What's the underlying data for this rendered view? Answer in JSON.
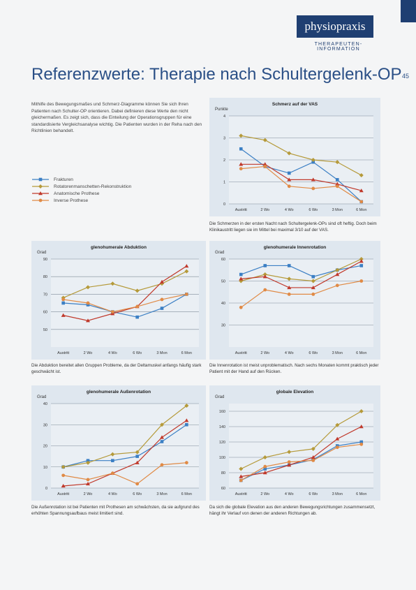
{
  "logo": "physiopraxis",
  "logo_subtitle": "THERAPEUTEN-INFORMATION",
  "title": "Referenzwerte: Therapie nach Schultergelenk-OP",
  "page_number": "45",
  "intro": "Mithilfe des Bewegungsmaßes und Schmerz-Diagramme können Sie sich Ihren Patienten nach Schulter-OP orientieren. Dabei definieren diese Werte den nicht gleichermaßen. Es zeigt sich, dass die Einteilung der Operationsgruppen für eine standardisierte Vergleichsanalyse wichtig. Die Patienten wurden in der Reha nach den Richtlinien behandelt.",
  "chart_data": [
    {
      "type": "line",
      "title": "Schmerz auf der VAS",
      "y_label": "Punkte",
      "categories": [
        "Austritt",
        "2 Wo",
        "4 Wo",
        "6 Wo",
        "3 Mon",
        "6 Mon"
      ],
      "ylim": [
        0,
        4
      ],
      "yticks": [
        0,
        1,
        2,
        3,
        4
      ],
      "grid": true,
      "series": [
        {
          "name": "Frakturen",
          "color": "#3b7fc4",
          "marker": "square",
          "values": [
            2.5,
            1.7,
            1.4,
            1.9,
            1.1,
            0.1
          ]
        },
        {
          "name": "Rotatorenmanschetten-Rekonstruktion",
          "color": "#b59a3a",
          "marker": "diamond",
          "values": [
            3.1,
            2.9,
            2.3,
            2.0,
            1.9,
            1.3
          ]
        },
        {
          "name": "Anatomische Prothese",
          "color": "#c0392b",
          "marker": "triangle",
          "values": [
            1.8,
            1.8,
            1.1,
            1.1,
            0.9,
            0.6
          ]
        },
        {
          "name": "Inverse Prothese",
          "color": "#e08a45",
          "marker": "circle",
          "values": [
            1.6,
            1.7,
            0.8,
            0.7,
            0.8,
            0.1
          ]
        }
      ],
      "caption": "Die Schmerzen in der ersten Nacht nach Schultergelenk-OPs sind oft heftig. Doch beim Klinikaustritt liegen sie im Mittel bei maximal 3/10 auf der VAS."
    },
    {
      "type": "line",
      "title": "glenohumerale Abduktion",
      "y_label": "Grad",
      "categories": [
        "Austritt",
        "2 Wo",
        "4 Wo",
        "6 Wo",
        "3 Mon",
        "6 Mon"
      ],
      "ylim": [
        40,
        90
      ],
      "yticks": [
        50,
        60,
        70,
        80,
        90
      ],
      "grid": true,
      "series": [
        {
          "color": "#3b7fc4",
          "marker": "square",
          "values": [
            65,
            64,
            60,
            57,
            62,
            70
          ]
        },
        {
          "color": "#b59a3a",
          "marker": "diamond",
          "values": [
            68,
            74,
            76,
            72,
            76,
            83
          ]
        },
        {
          "color": "#c0392b",
          "marker": "triangle",
          "values": [
            58,
            55,
            59,
            63,
            77,
            86
          ]
        },
        {
          "color": "#e08a45",
          "marker": "circle",
          "values": [
            67,
            65,
            60,
            63,
            67,
            70
          ]
        }
      ],
      "caption": "Die Abduktion bereitet allen Gruppen Probleme, da der Deltamuskel anfangs häufig stark geschwächt ist."
    },
    {
      "type": "line",
      "title": "glenohumerale Innenrotation",
      "y_label": "Grad",
      "categories": [
        "Austritt",
        "2 Wo",
        "4 Wo",
        "6 Wo",
        "3 Mon",
        "6 Mon"
      ],
      "ylim": [
        20,
        60
      ],
      "yticks": [
        30,
        40,
        50,
        60
      ],
      "grid": true,
      "series": [
        {
          "color": "#3b7fc4",
          "marker": "square",
          "values": [
            53,
            57,
            57,
            52,
            55,
            57
          ]
        },
        {
          "color": "#b59a3a",
          "marker": "diamond",
          "values": [
            50,
            53,
            51,
            50,
            55,
            60
          ]
        },
        {
          "color": "#c0392b",
          "marker": "triangle",
          "values": [
            51,
            52,
            47,
            47,
            53,
            59
          ]
        },
        {
          "color": "#e08a45",
          "marker": "circle",
          "values": [
            38,
            46,
            44,
            44,
            48,
            50
          ]
        }
      ],
      "caption": "Die Innenrotation ist meist unproblematisch. Nach sechs Monaten kommt praktisch jeder Patient mit der Hand auf den Rücken."
    },
    {
      "type": "line",
      "title": "glenohumerale Außenrotation",
      "y_label": "Grad",
      "categories": [
        "Austritt",
        "2 Wo",
        "4 Wo",
        "6 Wo",
        "3 Mon",
        "6 Mon"
      ],
      "ylim": [
        0,
        40
      ],
      "yticks": [
        0,
        10,
        20,
        30,
        40
      ],
      "grid": true,
      "series": [
        {
          "color": "#3b7fc4",
          "marker": "square",
          "values": [
            10,
            13,
            13,
            15,
            22,
            30
          ]
        },
        {
          "color": "#b59a3a",
          "marker": "diamond",
          "values": [
            10,
            12,
            16,
            17,
            30,
            39
          ]
        },
        {
          "color": "#c0392b",
          "marker": "triangle",
          "values": [
            1,
            2,
            7,
            12,
            24,
            32
          ]
        },
        {
          "color": "#e08a45",
          "marker": "circle",
          "values": [
            6,
            4,
            7,
            2,
            11,
            12
          ]
        }
      ],
      "caption": "Die Außenrotation ist bei Patienten mit Prothesen am schwächsten, da sie aufgrund des erhöhten Spannungsaufbaus meist limitiert sind."
    },
    {
      "type": "line",
      "title": "globale Elevation",
      "y_label": "Grad",
      "categories": [
        "Austritt",
        "2 Wo",
        "4 Wo",
        "6 Wo",
        "3 Mon",
        "6 Mon"
      ],
      "ylim": [
        60,
        170
      ],
      "yticks": [
        60,
        80,
        100,
        120,
        140,
        160
      ],
      "grid": true,
      "series": [
        {
          "color": "#3b7fc4",
          "marker": "square",
          "values": [
            70,
            85,
            90,
            97,
            115,
            120
          ]
        },
        {
          "color": "#b59a3a",
          "marker": "diamond",
          "values": [
            85,
            100,
            107,
            111,
            142,
            160
          ]
        },
        {
          "color": "#c0392b",
          "marker": "triangle",
          "values": [
            75,
            80,
            90,
            100,
            124,
            140
          ]
        },
        {
          "color": "#e08a45",
          "marker": "circle",
          "values": [
            70,
            88,
            94,
            96,
            113,
            117
          ]
        }
      ],
      "caption": "Da sich die globale Elevation aus den anderen Bewegungsrichtungen zusammensetzt, hängt ihr Verlauf von denen der anderen Richtungen ab."
    }
  ]
}
